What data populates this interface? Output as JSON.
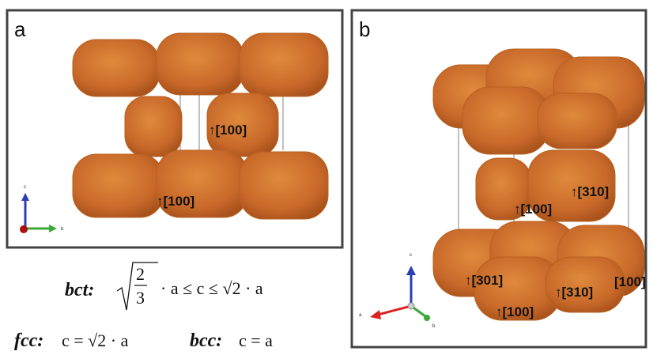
{
  "panels": [
    {
      "label": "a",
      "annotations": [
        "↑[100]",
        "↑[100]"
      ],
      "axes": [
        "c",
        "b"
      ]
    },
    {
      "label": "b",
      "annotations": [
        "↑[310]",
        "↑[100]",
        "↑[301]",
        "↑[310]",
        "[100]",
        "↑[100]"
      ],
      "axes": [
        "c",
        "a",
        "b"
      ]
    }
  ],
  "formulas": {
    "bct": {
      "name": "bct:",
      "numerator": "2",
      "denominator": "3",
      "rest": "· a ≤ c ≤ √2 · a"
    },
    "fcc": {
      "name": "fcc:",
      "expression": "c = √2 · a"
    },
    "bcc": {
      "name": "bcc:",
      "expression": "c = a"
    }
  }
}
